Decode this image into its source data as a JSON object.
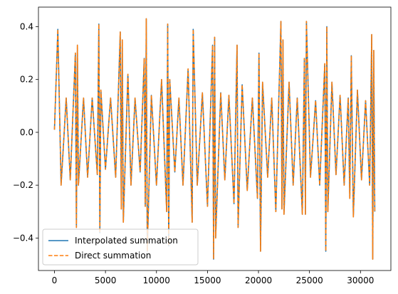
{
  "chart_data": {
    "type": "line",
    "title": "",
    "xlabel": "",
    "ylabel": "",
    "xlim": [
      -1570,
      32980
    ],
    "ylim": [
      -0.523,
      0.474
    ],
    "x_ticks": [
      0,
      5000,
      10000,
      15000,
      20000,
      25000,
      30000
    ],
    "x_tick_labels": [
      "0",
      "5000",
      "10000",
      "15000",
      "20000",
      "25000",
      "30000"
    ],
    "y_ticks": [
      -0.4,
      -0.2,
      0.0,
      0.2,
      0.4
    ],
    "y_tick_labels": [
      "−0.4",
      "−0.2",
      "0.0",
      "0.2",
      "0.4"
    ],
    "grid": false,
    "legend_position": "lower-left",
    "x_range": [
      0,
      31400
    ],
    "series": [
      {
        "name": "Interpolated summation",
        "color": "#1f77b4",
        "style": "solid",
        "x": [
          0,
          330,
          650,
          1150,
          1550,
          2050,
          2150,
          2250,
          2350,
          2850,
          3250,
          3700,
          4200,
          4350,
          4450,
          4550,
          5000,
          5500,
          6000,
          6450,
          6550,
          6650,
          6750,
          7200,
          7500,
          7900,
          8400,
          8800,
          8900,
          9000,
          9100,
          9500,
          10000,
          10500,
          11000,
          11100,
          11200,
          11300,
          11800,
          12200,
          12600,
          13100,
          13500,
          13600,
          14000,
          14500,
          15000,
          15500,
          15600,
          15700,
          15800,
          16300,
          16700,
          17100,
          17600,
          17900,
          18000,
          18400,
          18900,
          19400,
          19900,
          20050,
          20200,
          20400,
          20900,
          21300,
          21700,
          22200,
          22300,
          22400,
          22500,
          23000,
          23400,
          23800,
          24300,
          24500,
          24600,
          24700,
          25100,
          25600,
          26000,
          26500,
          26600,
          26700,
          26800,
          27200,
          27600,
          28000,
          28400,
          28800,
          28950,
          29100,
          29300,
          29700,
          30100,
          30500,
          30900,
          31100,
          31200,
          31300,
          31400
        ],
        "y": [
          0.01,
          0.39,
          -0.2,
          0.13,
          -0.18,
          0.3,
          -0.36,
          0.33,
          -0.2,
          0.13,
          -0.17,
          0.13,
          -0.16,
          0.41,
          -0.38,
          0.16,
          -0.14,
          0.13,
          -0.17,
          0.38,
          -0.29,
          0.35,
          -0.34,
          0.22,
          -0.2,
          0.13,
          -0.15,
          0.28,
          -0.28,
          0.43,
          -0.45,
          0.14,
          -0.2,
          0.2,
          -0.3,
          0.41,
          -0.43,
          0.2,
          -0.15,
          0.13,
          -0.2,
          0.24,
          -0.34,
          0.39,
          -0.2,
          0.15,
          -0.28,
          0.33,
          -0.48,
          0.36,
          -0.4,
          0.15,
          -0.18,
          0.14,
          -0.27,
          0.33,
          -0.36,
          0.18,
          -0.22,
          0.13,
          -0.25,
          0.3,
          -0.45,
          0.19,
          -0.17,
          0.13,
          -0.3,
          0.42,
          -0.29,
          0.35,
          -0.31,
          0.19,
          -0.2,
          0.13,
          -0.31,
          0.28,
          -0.31,
          0.42,
          -0.17,
          0.12,
          -0.2,
          0.26,
          -0.45,
          0.4,
          -0.3,
          0.19,
          -0.16,
          0.14,
          -0.2,
          0.13,
          -0.25,
          0.29,
          -0.32,
          0.16,
          -0.18,
          0.12,
          -0.2,
          0.37,
          -0.48,
          0.31,
          -0.3
        ]
      },
      {
        "name": "Direct summation",
        "color": "#ff7f0e",
        "style": "dashed",
        "x": [
          0,
          330,
          650,
          1150,
          1550,
          2050,
          2150,
          2250,
          2350,
          2850,
          3250,
          3700,
          4200,
          4350,
          4450,
          4550,
          5000,
          5500,
          6000,
          6450,
          6550,
          6650,
          6750,
          7200,
          7500,
          7900,
          8400,
          8800,
          8900,
          9000,
          9100,
          9500,
          10000,
          10500,
          11000,
          11100,
          11200,
          11300,
          11800,
          12200,
          12600,
          13100,
          13500,
          13600,
          14000,
          14500,
          15000,
          15500,
          15600,
          15700,
          15800,
          16300,
          16700,
          17100,
          17600,
          17900,
          18000,
          18400,
          18900,
          19400,
          19900,
          20050,
          20200,
          20400,
          20900,
          21300,
          21700,
          22200,
          22300,
          22400,
          22500,
          23000,
          23400,
          23800,
          24300,
          24500,
          24600,
          24700,
          25100,
          25600,
          26000,
          26500,
          26600,
          26700,
          26800,
          27200,
          27600,
          28000,
          28400,
          28800,
          28950,
          29100,
          29300,
          29700,
          30100,
          30500,
          30900,
          31100,
          31200,
          31300,
          31400
        ],
        "y": [
          0.01,
          0.39,
          -0.2,
          0.13,
          -0.18,
          0.3,
          -0.36,
          0.33,
          -0.2,
          0.13,
          -0.17,
          0.13,
          -0.16,
          0.41,
          -0.38,
          0.16,
          -0.14,
          0.13,
          -0.17,
          0.38,
          -0.29,
          0.35,
          -0.34,
          0.22,
          -0.2,
          0.13,
          -0.15,
          0.28,
          -0.28,
          0.43,
          -0.45,
          0.14,
          -0.2,
          0.2,
          -0.3,
          0.41,
          -0.43,
          0.2,
          -0.15,
          0.13,
          -0.2,
          0.24,
          -0.34,
          0.39,
          -0.2,
          0.15,
          -0.28,
          0.33,
          -0.48,
          0.36,
          -0.4,
          0.15,
          -0.18,
          0.14,
          -0.27,
          0.33,
          -0.36,
          0.18,
          -0.22,
          0.13,
          -0.25,
          0.3,
          -0.45,
          0.19,
          -0.17,
          0.13,
          -0.3,
          0.42,
          -0.29,
          0.35,
          -0.31,
          0.19,
          -0.2,
          0.13,
          -0.31,
          0.28,
          -0.31,
          0.42,
          -0.17,
          0.12,
          -0.2,
          0.26,
          -0.45,
          0.4,
          -0.3,
          0.19,
          -0.16,
          0.14,
          -0.2,
          0.13,
          -0.25,
          0.29,
          -0.32,
          0.16,
          -0.18,
          0.12,
          -0.2,
          0.37,
          -0.48,
          0.31,
          -0.3
        ]
      }
    ]
  }
}
